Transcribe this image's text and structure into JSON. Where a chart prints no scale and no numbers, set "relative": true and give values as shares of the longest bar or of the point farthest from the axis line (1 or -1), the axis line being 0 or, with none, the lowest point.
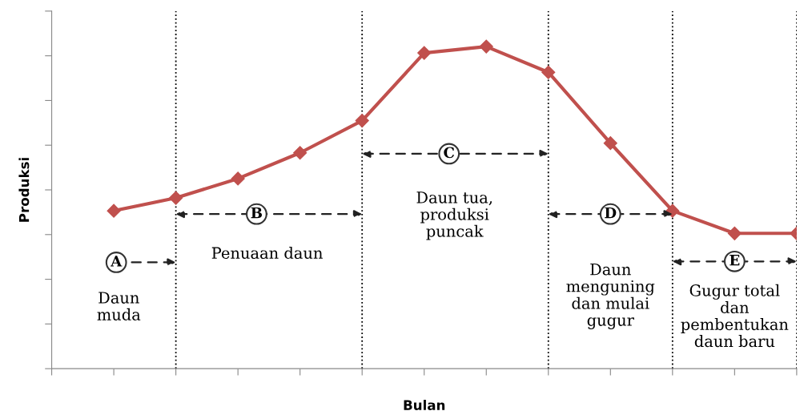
{
  "chart_data": {
    "type": "line",
    "xlabel": "Bulan",
    "ylabel": "Produksi",
    "relative": true,
    "categories": [
      null,
      null,
      null,
      null,
      null,
      null,
      null,
      null,
      null,
      null,
      null,
      null
    ],
    "series": [
      {
        "color": "#c0504d",
        "values": [
          0.49,
          0.53,
          0.59,
          0.67,
          0.77,
          0.98,
          1.0,
          0.92,
          0.7,
          0.49,
          0.42,
          0.42
        ]
      }
    ],
    "marker": "diamond",
    "line_style": "solid",
    "tick_labels": false,
    "grid": "x",
    "annotations": [
      "A",
      "B",
      "C",
      "D",
      "E",
      "Daun\nmuda",
      "Penuaan daun",
      "Daun tua,\nproduksi\npuncak",
      "Daun\nmenguning\ndan mulai\ngugur",
      "Gugur total\ndan\npembentukan\ndaun baru"
    ]
  }
}
